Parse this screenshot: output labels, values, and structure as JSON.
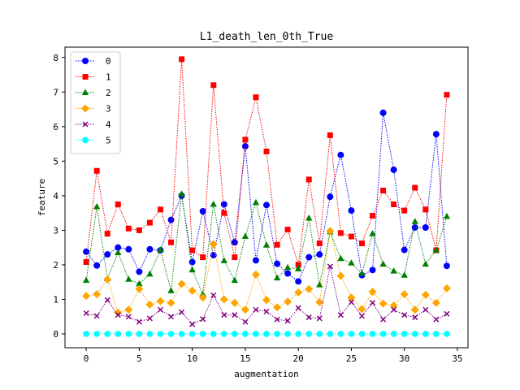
{
  "chart_data": {
    "type": "line",
    "title": "L1_death_len_0th_True",
    "xlabel": "augmentation",
    "ylabel": "feature",
    "xlim": [
      -2,
      36
    ],
    "ylim": [
      -0.4,
      8.3
    ],
    "xticks": [
      0,
      5,
      10,
      15,
      20,
      25,
      30,
      35
    ],
    "yticks": [
      0,
      1,
      2,
      3,
      4,
      5,
      6,
      7,
      8
    ],
    "grid": false,
    "legend": "upper left",
    "x": [
      0,
      1,
      2,
      3,
      4,
      5,
      6,
      7,
      8,
      9,
      10,
      11,
      12,
      13,
      14,
      15,
      16,
      17,
      18,
      19,
      20,
      21,
      22,
      23,
      24,
      25,
      26,
      27,
      28,
      29,
      30,
      31,
      32,
      33,
      34
    ],
    "series": [
      {
        "name": "0",
        "color": "#0000ff",
        "marker": "circle",
        "values": [
          2.38,
          1.98,
          2.3,
          2.5,
          2.45,
          1.8,
          2.45,
          2.42,
          3.3,
          4.0,
          2.08,
          3.55,
          2.28,
          3.75,
          2.65,
          5.43,
          2.13,
          3.73,
          2.03,
          1.75,
          1.52,
          2.22,
          2.3,
          3.97,
          5.18,
          3.57,
          1.7,
          1.85,
          6.4,
          4.75,
          2.43,
          3.08,
          3.08,
          5.78,
          1.97
        ]
      },
      {
        "name": "1",
        "color": "#ff0000",
        "marker": "square",
        "values": [
          2.08,
          4.72,
          2.9,
          3.75,
          3.05,
          3.0,
          3.22,
          3.6,
          2.65,
          7.95,
          2.42,
          2.22,
          7.2,
          3.5,
          2.22,
          5.62,
          6.85,
          5.28,
          2.58,
          3.02,
          2.0,
          4.47,
          2.62,
          5.75,
          2.92,
          2.82,
          2.62,
          3.42,
          4.15,
          3.75,
          3.57,
          4.23,
          3.6,
          2.42,
          6.92
        ]
      },
      {
        "name": "2",
        "color": "#008000",
        "marker": "triangle",
        "values": [
          1.55,
          3.68,
          1.6,
          2.35,
          1.58,
          1.45,
          1.73,
          2.43,
          1.25,
          4.05,
          1.85,
          1.15,
          3.75,
          2.12,
          1.55,
          2.82,
          3.8,
          2.57,
          1.62,
          1.92,
          1.88,
          3.35,
          1.42,
          2.95,
          2.18,
          2.05,
          1.75,
          2.9,
          2.02,
          1.82,
          1.7,
          3.25,
          2.02,
          2.42,
          3.4
        ]
      },
      {
        "name": "3",
        "color": "#ffa500",
        "marker": "diamond",
        "values": [
          1.1,
          1.15,
          1.58,
          0.62,
          0.7,
          1.3,
          0.85,
          0.95,
          0.9,
          1.45,
          1.25,
          1.05,
          2.6,
          1.0,
          0.9,
          0.7,
          1.72,
          0.98,
          0.77,
          0.93,
          1.2,
          1.3,
          0.92,
          2.98,
          1.68,
          1.05,
          0.72,
          1.22,
          0.88,
          0.82,
          1.15,
          0.7,
          1.13,
          0.9,
          1.32
        ]
      },
      {
        "name": "4",
        "color": "#800080",
        "marker": "x",
        "values": [
          0.6,
          0.52,
          0.98,
          0.55,
          0.5,
          0.35,
          0.45,
          0.7,
          0.5,
          0.63,
          0.28,
          0.43,
          1.12,
          0.55,
          0.55,
          0.35,
          0.7,
          0.65,
          0.42,
          0.38,
          0.75,
          0.48,
          0.45,
          1.95,
          0.55,
          0.92,
          0.52,
          0.9,
          0.42,
          0.7,
          0.55,
          0.48,
          0.7,
          0.42,
          0.58
        ]
      },
      {
        "name": "5",
        "color": "#00ffff",
        "marker": "octagon",
        "values": [
          0,
          0,
          0,
          0,
          0,
          0,
          0,
          0,
          0,
          0,
          0,
          0,
          0,
          0,
          0,
          0,
          0,
          0,
          0,
          0,
          0,
          0,
          0,
          0,
          0,
          0,
          0,
          0,
          0,
          0,
          0,
          0,
          0,
          0,
          0
        ]
      }
    ]
  }
}
